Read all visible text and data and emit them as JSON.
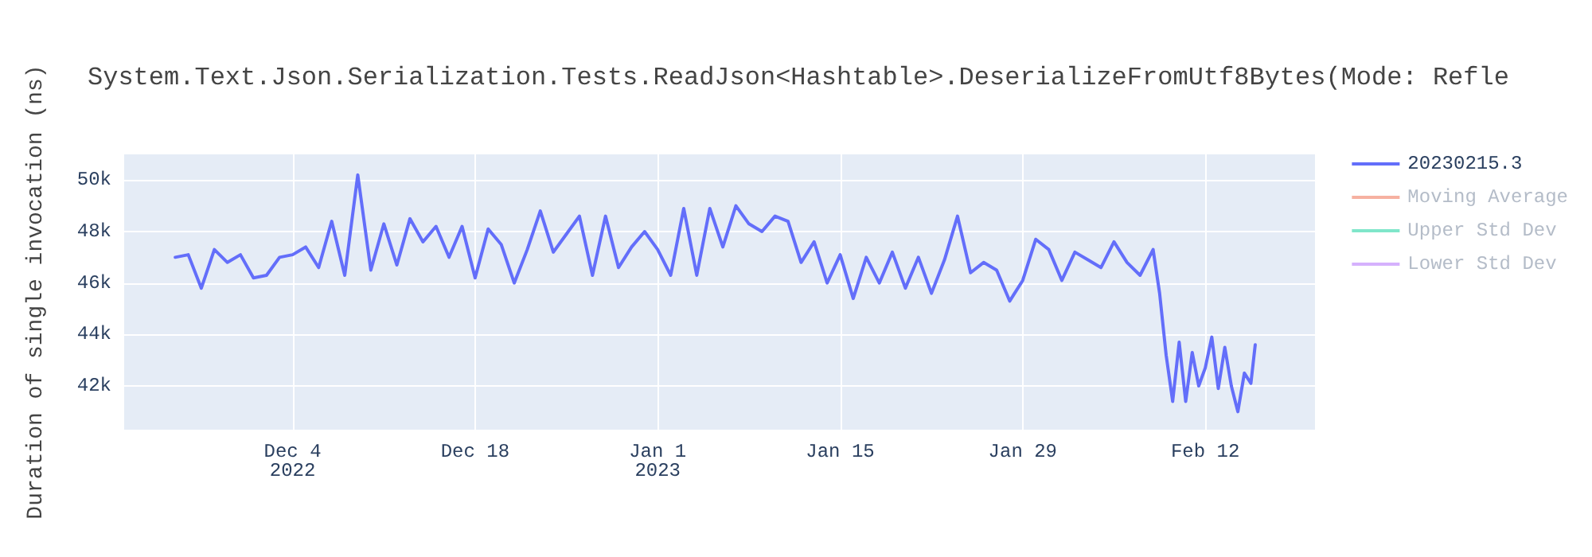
{
  "chart_data": {
    "type": "line",
    "title": "System.Text.Json.Serialization.Tests.ReadJson<Hashtable>.DeserializeFromUtf8Bytes(Mode: Refle",
    "ylabel": "Duration of single invocation (ns)",
    "x": [
      "2022-11-25",
      "2022-11-26",
      "2022-11-27",
      "2022-11-28",
      "2022-11-29",
      "2022-11-30",
      "2022-12-01",
      "2022-12-02",
      "2022-12-03",
      "2022-12-04",
      "2022-12-05",
      "2022-12-06",
      "2022-12-07",
      "2022-12-08",
      "2022-12-09",
      "2022-12-10",
      "2022-12-11",
      "2022-12-12",
      "2022-12-13",
      "2022-12-14",
      "2022-12-15",
      "2022-12-16",
      "2022-12-17",
      "2022-12-18",
      "2022-12-19",
      "2022-12-20",
      "2022-12-21",
      "2022-12-22",
      "2022-12-23",
      "2022-12-24",
      "2022-12-25",
      "2022-12-26",
      "2022-12-27",
      "2022-12-28",
      "2022-12-29",
      "2022-12-30",
      "2022-12-31",
      "2023-01-01",
      "2023-01-02",
      "2023-01-03",
      "2023-01-04",
      "2023-01-05",
      "2023-01-06",
      "2023-01-07",
      "2023-01-08",
      "2023-01-09",
      "2023-01-10",
      "2023-01-11",
      "2023-01-12",
      "2023-01-13",
      "2023-01-14",
      "2023-01-15",
      "2023-01-16",
      "2023-01-17",
      "2023-01-18",
      "2023-01-19",
      "2023-01-20",
      "2023-01-21",
      "2023-01-22",
      "2023-01-23",
      "2023-01-24",
      "2023-01-25",
      "2023-01-26",
      "2023-01-27",
      "2023-01-28",
      "2023-01-29",
      "2023-01-30",
      "2023-01-31",
      "2023-02-01",
      "2023-02-02",
      "2023-02-03",
      "2023-02-04",
      "2023-02-05",
      "2023-02-06",
      "2023-02-07",
      "2023-02-08",
      "2023-02-08T12:00",
      "2023-02-09",
      "2023-02-09T12:00",
      "2023-02-10",
      "2023-02-10T12:00",
      "2023-02-11",
      "2023-02-11T12:00",
      "2023-02-12",
      "2023-02-12T12:00",
      "2023-02-13",
      "2023-02-13T12:00",
      "2023-02-14",
      "2023-02-14T12:00",
      "2023-02-15",
      "2023-02-15T12:00",
      "2023-02-15T20:00"
    ],
    "series": [
      {
        "name": "20230215.3",
        "color": "#636efa",
        "values": [
          47000,
          47100,
          45800,
          47300,
          46800,
          47100,
          46200,
          46300,
          47000,
          47100,
          47400,
          46600,
          48400,
          46300,
          50200,
          46500,
          48300,
          46700,
          48500,
          47600,
          48200,
          47000,
          48200,
          46200,
          48100,
          47500,
          46000,
          47300,
          48800,
          47200,
          47900,
          48600,
          46300,
          48600,
          46600,
          47400,
          48000,
          47300,
          46300,
          48900,
          46300,
          48900,
          47400,
          49000,
          48300,
          48000,
          48600,
          48400,
          46800,
          47600,
          46000,
          47100,
          45400,
          47000,
          46000,
          47200,
          45800,
          47000,
          45600,
          46900,
          48600,
          46400,
          46800,
          46500,
          45300,
          46100,
          47700,
          47300,
          46100,
          47200,
          46900,
          46600,
          47600,
          46800,
          46300,
          47300,
          45600,
          43200,
          41400,
          43700,
          41400,
          43300,
          42000,
          42700,
          43900,
          41900,
          43500,
          42000,
          41000,
          42500,
          42100,
          43600
        ]
      },
      {
        "name": "Moving Average",
        "color": "#f6b1a1",
        "values": [
          null,
          null,
          null,
          null,
          null,
          null,
          null,
          null,
          null,
          null,
          null,
          null,
          null,
          null,
          null,
          null,
          null,
          null,
          null,
          null,
          null,
          null,
          null,
          null,
          null,
          null,
          null,
          null,
          null,
          null,
          null,
          null,
          null,
          null,
          null,
          null,
          null,
          null,
          null,
          null,
          null,
          null,
          null,
          null,
          null,
          null,
          null,
          null,
          null,
          null,
          null,
          null,
          null,
          null,
          null,
          null,
          null,
          null,
          null,
          null,
          null,
          null,
          null,
          null,
          null,
          null,
          null,
          null,
          null,
          null,
          null,
          null,
          null,
          null,
          null,
          null,
          null,
          null,
          null,
          null,
          null,
          null,
          null,
          null,
          null,
          null,
          null,
          null,
          null,
          null,
          null,
          null
        ]
      },
      {
        "name": "Upper Std Dev",
        "color": "#80e6ca",
        "values": [
          null,
          null,
          null,
          null,
          null,
          null,
          null,
          null,
          null,
          null,
          null,
          null,
          null,
          null,
          null,
          null,
          null,
          null,
          null,
          null,
          null,
          null,
          null,
          null,
          null,
          null,
          null,
          null,
          null,
          null,
          null,
          null,
          null,
          null,
          null,
          null,
          null,
          null,
          null,
          null,
          null,
          null,
          null,
          null,
          null,
          null,
          null,
          null,
          null,
          null,
          null,
          null,
          null,
          null,
          null,
          null,
          null,
          null,
          null,
          null,
          null,
          null,
          null,
          null,
          null,
          null,
          null,
          null,
          null,
          null,
          null,
          null,
          null,
          null,
          null,
          null,
          null,
          null,
          null,
          null,
          null,
          null,
          null,
          null,
          null,
          null,
          null,
          null,
          null,
          null,
          null,
          null
        ]
      },
      {
        "name": "Lower Std Dev",
        "color": "#d5b1fd",
        "values": [
          null,
          null,
          null,
          null,
          null,
          null,
          null,
          null,
          null,
          null,
          null,
          null,
          null,
          null,
          null,
          null,
          null,
          null,
          null,
          null,
          null,
          null,
          null,
          null,
          null,
          null,
          null,
          null,
          null,
          null,
          null,
          null,
          null,
          null,
          null,
          null,
          null,
          null,
          null,
          null,
          null,
          null,
          null,
          null,
          null,
          null,
          null,
          null,
          null,
          null,
          null,
          null,
          null,
          null,
          null,
          null,
          null,
          null,
          null,
          null,
          null,
          null,
          null,
          null,
          null,
          null,
          null,
          null,
          null,
          null,
          null,
          null,
          null,
          null,
          null,
          null,
          null,
          null,
          null,
          null,
          null,
          null,
          null,
          null,
          null,
          null,
          null,
          null,
          null,
          null,
          null,
          null
        ]
      }
    ],
    "xlim": [
      "2022-11-21T02:00",
      "2023-02-20T10:00"
    ],
    "xticks": [
      {
        "value": "2022-12-04",
        "label": "Dec 4\n2022"
      },
      {
        "value": "2022-12-18",
        "label": "Dec 18"
      },
      {
        "value": "2023-01-01",
        "label": "Jan 1\n2023"
      },
      {
        "value": "2023-01-15",
        "label": "Jan 15"
      },
      {
        "value": "2023-01-29",
        "label": "Jan 29"
      },
      {
        "value": "2023-02-12",
        "label": "Feb 12"
      }
    ],
    "ylim": [
      40300,
      51000
    ],
    "yticks": [
      {
        "value": 42000,
        "label": "42k"
      },
      {
        "value": 44000,
        "label": "44k"
      },
      {
        "value": 46000,
        "label": "46k"
      },
      {
        "value": 48000,
        "label": "48k"
      },
      {
        "value": 50000,
        "label": "50k"
      }
    ],
    "grid": true,
    "legend": "top right"
  }
}
